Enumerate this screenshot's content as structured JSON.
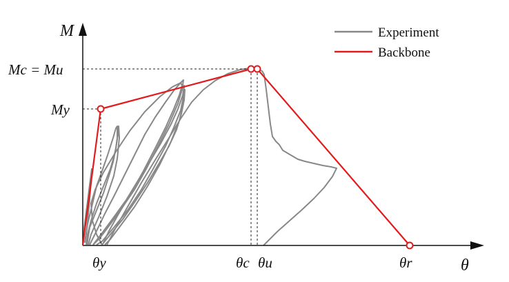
{
  "chart_data": {
    "type": "line",
    "title": "",
    "axes": {
      "x_label": "θ",
      "y_label": "M"
    },
    "legend": {
      "placement": "top-right",
      "entries": [
        {
          "name": "Experiment",
          "color": "#7f7f7f"
        },
        {
          "name": "Backbone",
          "color": "#e31a1c"
        }
      ]
    },
    "y_ticks": [
      {
        "base": "Mc = Mu",
        "level": 1.0
      },
      {
        "base": "My",
        "level": 0.8
      }
    ],
    "x_ticks": [
      {
        "base": "θy"
      },
      {
        "base": "θc"
      },
      {
        "base": "θu"
      },
      {
        "base": "θr"
      }
    ],
    "series": [
      {
        "name": "Backbone",
        "color": "#e31a1c",
        "points": [
          {
            "x": 0.0,
            "y": 0.0
          },
          {
            "x": 0.058,
            "y": 0.8
          },
          {
            "x": 0.0,
            "y": 0.0
          }
        ]
      }
    ]
  }
}
